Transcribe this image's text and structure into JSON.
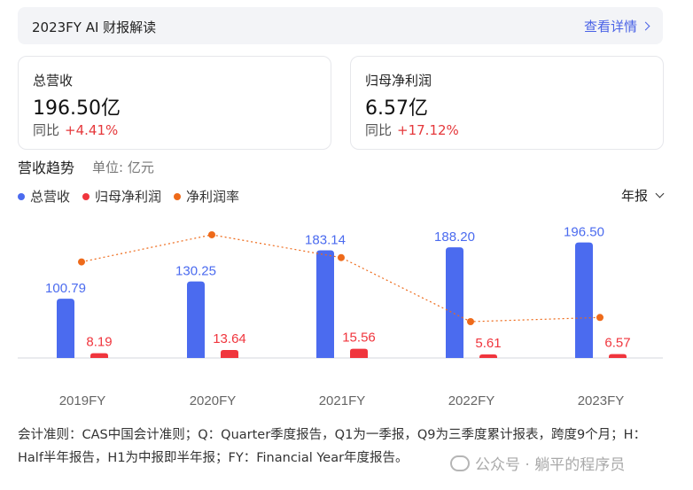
{
  "header": {
    "title": "2023FY AI 财报解读",
    "link_label": "查看详情"
  },
  "cards": [
    {
      "label": "总营收",
      "value": "196.50亿",
      "yoy_label": "同比",
      "yoy_value": "+4.41%"
    },
    {
      "label": "归母净利润",
      "value": "6.57亿",
      "yoy_label": "同比",
      "yoy_value": "+17.12%"
    }
  ],
  "section": {
    "title": "营收趋势",
    "unit": "单位: 亿元"
  },
  "period_select": {
    "selected": "年报"
  },
  "colors": {
    "revenue": "#4b6bef",
    "net_profit": "#f0353d",
    "net_margin": "#ee6a1a",
    "link": "#4a62e6"
  },
  "chart_data": {
    "type": "bar",
    "categories": [
      "2019FY",
      "2020FY",
      "2021FY",
      "2022FY",
      "2023FY"
    ],
    "series": [
      {
        "name": "总营收",
        "type": "bar",
        "values": [
          100.79,
          130.25,
          183.14,
          188.2,
          196.5
        ],
        "labels": [
          "100.79",
          "130.25",
          "183.14",
          "188.20",
          "196.50"
        ]
      },
      {
        "name": "归母净利润",
        "type": "bar",
        "values": [
          8.19,
          13.64,
          15.56,
          5.61,
          6.57
        ],
        "labels": [
          "8.19",
          "13.64",
          "15.56",
          "5.61",
          "6.57"
        ]
      },
      {
        "name": "净利润率",
        "type": "line",
        "style": "dotted",
        "values": [
          8.13,
          10.47,
          8.5,
          2.98,
          3.34
        ]
      }
    ],
    "ylim": [
      0,
      205
    ],
    "legend": "top-left",
    "grid": false
  },
  "footnote": "会计准则：CAS中国会计准则；Q：Quarter季度报告，Q1为一季报，Q9为三季度累计报表，跨度9个月；H：Half半年报告，H1为中报即半年报；FY：Financial Year年度报告。",
  "watermark": "公众号 · 躺平的程序员"
}
